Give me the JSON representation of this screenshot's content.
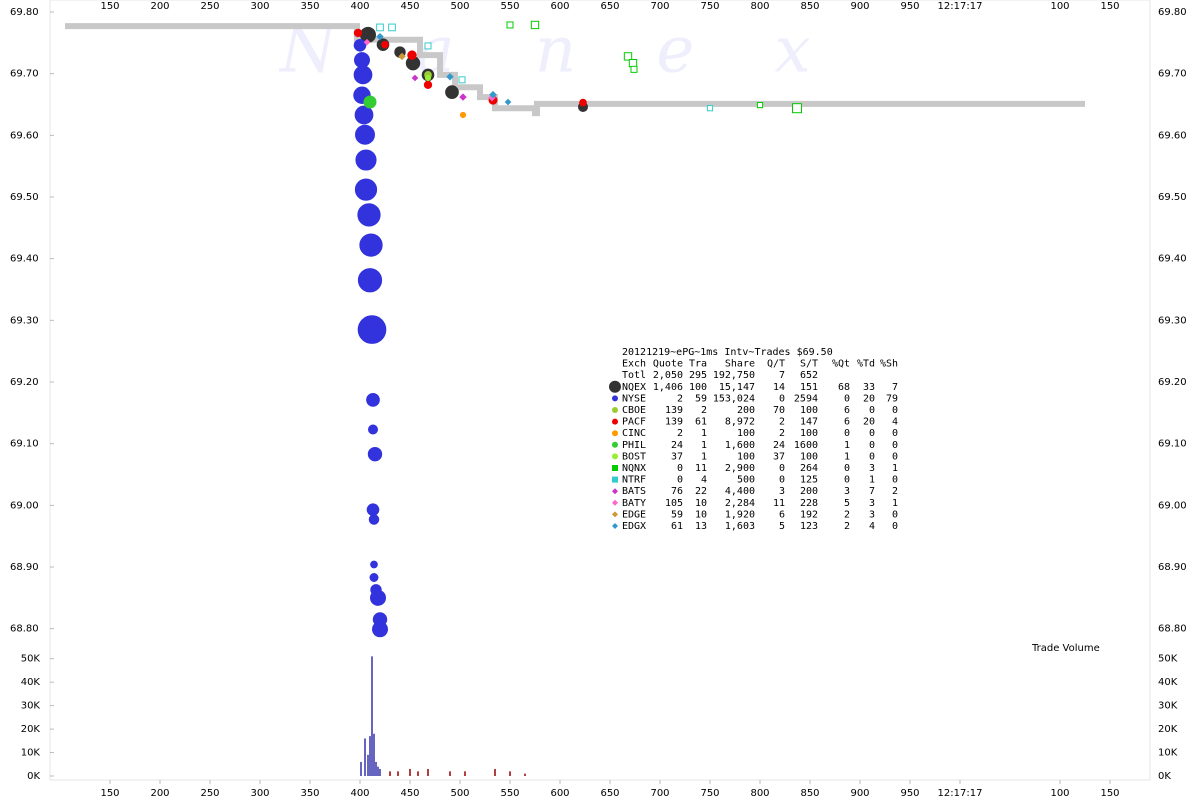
{
  "chart_data": {
    "type": "scatter",
    "watermark": "N a n e x",
    "xlim": [
      90,
      1190
    ],
    "xticks": [
      150,
      200,
      250,
      300,
      350,
      400,
      450,
      500,
      550,
      600,
      650,
      700,
      750,
      800,
      850,
      900,
      950,
      {
        "value": 1000,
        "label": "12:17:17"
      },
      {
        "value": 1100,
        "label": "100"
      },
      {
        "value": 1150,
        "label": "150"
      }
    ],
    "ylim": [
      68.78,
      69.8
    ],
    "yticks": [
      {
        "value": 69.8,
        "label": "69.80"
      },
      {
        "value": 69.7,
        "label": "69.70"
      },
      {
        "value": 69.6,
        "label": "69.60"
      },
      {
        "value": 69.5,
        "label": "69.50"
      },
      {
        "value": 69.4,
        "label": "69.40"
      },
      {
        "value": 69.3,
        "label": "69.30"
      },
      {
        "value": 69.2,
        "label": "69.20"
      },
      {
        "value": 69.1,
        "label": "69.10"
      },
      {
        "value": 69.0,
        "label": "69.00"
      },
      {
        "value": 68.9,
        "label": "68.90"
      },
      {
        "value": 68.8,
        "label": "68.80"
      }
    ],
    "nbbo": {
      "color": "#c8c8c8",
      "x": [
        105,
        397,
        397,
        460,
        460,
        480,
        480,
        495,
        495,
        520,
        520,
        535,
        535,
        575,
        575,
        577,
        577,
        1125
      ],
      "values": [
        69.777,
        69.777,
        69.755,
        69.755,
        69.73,
        69.73,
        69.698,
        69.698,
        69.678,
        69.678,
        69.662,
        69.662,
        69.644,
        69.644,
        69.636,
        69.636,
        69.651,
        69.651
      ]
    },
    "stats": {
      "title": "20121219~ePG~1ms Intv~Trades $69.50",
      "columns": [
        "Exch",
        "Quote",
        "Tra",
        "Share",
        "Q/T",
        "S/T",
        "%Qt",
        "%Td",
        "%Sh"
      ],
      "total": {
        "name": "Totl",
        "stats": [
          "2,050",
          "295",
          "192,750",
          "7",
          "652"
        ]
      }
    },
    "series": [
      {
        "name": "NQEX",
        "color": "#333333",
        "marker": "circle",
        "filled": true,
        "stats": [
          "1,406",
          "100",
          "15,147",
          "14",
          "151",
          "68",
          "33",
          "7"
        ],
        "x": [
          408,
          423,
          440,
          453,
          468,
          492,
          623
        ],
        "values": [
          69.763,
          69.747,
          69.735,
          69.717,
          69.698,
          69.67,
          69.646
        ],
        "sizes": [
          2500,
          1500,
          1200,
          2000,
          1500,
          1800,
          900
        ]
      },
      {
        "name": "NYSE",
        "color": "#3333dd",
        "marker": "circle",
        "filled": true,
        "stats": [
          "2",
          "59",
          "153,024",
          "0",
          "2594",
          "0",
          "20",
          "79"
        ],
        "x": [
          400,
          402,
          403,
          402,
          404,
          405,
          406,
          406,
          409,
          411,
          410,
          412,
          413,
          413,
          415,
          413,
          414,
          414,
          414,
          416,
          418,
          420,
          420
        ],
        "values": [
          69.746,
          69.722,
          69.698,
          69.665,
          69.633,
          69.601,
          69.56,
          69.512,
          69.471,
          69.422,
          69.365,
          69.285,
          69.171,
          69.123,
          69.083,
          68.993,
          68.977,
          68.904,
          68.883,
          68.863,
          68.85,
          68.815,
          68.799
        ],
        "sizes": [
          1500,
          2500,
          3500,
          3000,
          3500,
          4000,
          4500,
          5000,
          5500,
          5500,
          6000,
          8500,
          1800,
          900,
          2000,
          1500,
          1000,
          500,
          700,
          1200,
          2500,
          2000,
          2500
        ]
      },
      {
        "name": "CBOE",
        "color": "#99cc33",
        "marker": "circle",
        "filled": true,
        "stats": [
          "139",
          "2",
          "200",
          "70",
          "100",
          "6",
          "0",
          "0"
        ],
        "x": [
          468
        ],
        "values": [
          69.698
        ],
        "sizes": [
          500
        ]
      },
      {
        "name": "PACF",
        "color": "#ee0000",
        "marker": "circle",
        "filled": true,
        "stats": [
          "139",
          "61",
          "8,972",
          "2",
          "147",
          "6",
          "20",
          "4"
        ],
        "x": [
          398,
          425,
          452,
          468,
          533,
          623
        ],
        "values": [
          69.766,
          69.747,
          69.73,
          69.682,
          69.657,
          69.653
        ],
        "sizes": [
          600,
          500,
          800,
          600,
          700,
          500
        ]
      },
      {
        "name": "CINC",
        "color": "#ff9900",
        "marker": "circle",
        "filled": true,
        "stats": [
          "2",
          "1",
          "100",
          "2",
          "100",
          "0",
          "0",
          "0"
        ],
        "x": [
          503
        ],
        "values": [
          69.633
        ],
        "sizes": [
          300
        ]
      },
      {
        "name": "PHIL",
        "color": "#33cc33",
        "marker": "circle",
        "filled": true,
        "stats": [
          "24",
          "1",
          "1,600",
          "24",
          "1600",
          "1",
          "0",
          "0"
        ],
        "x": [
          410
        ],
        "values": [
          69.654
        ],
        "sizes": [
          1600
        ]
      },
      {
        "name": "BOST",
        "color": "#99ee33",
        "marker": "circle",
        "filled": true,
        "stats": [
          "37",
          "1",
          "100",
          "37",
          "100",
          "1",
          "0",
          "0"
        ],
        "x": [
          468
        ],
        "values": [
          69.693
        ],
        "sizes": [
          300
        ]
      },
      {
        "name": "NQNX",
        "color": "#00cc00",
        "marker": "square",
        "filled": false,
        "stats": [
          "0",
          "11",
          "2,900",
          "0",
          "264",
          "0",
          "3",
          "1"
        ],
        "x": [
          550,
          575,
          668,
          673,
          674,
          800,
          837
        ],
        "values": [
          69.779,
          69.779,
          69.728,
          69.717,
          69.707,
          69.649,
          69.644
        ],
        "sizes": [
          400,
          600,
          600,
          600,
          400,
          300,
          900
        ]
      },
      {
        "name": "NTRF",
        "color": "#33cccc",
        "marker": "square",
        "filled": false,
        "stats": [
          "0",
          "4",
          "500",
          "0",
          "125",
          "0",
          "1",
          "0"
        ],
        "x": [
          420,
          432,
          468,
          502,
          750
        ],
        "values": [
          69.775,
          69.775,
          69.745,
          69.69,
          69.644
        ],
        "sizes": [
          500,
          500,
          400,
          400,
          300
        ]
      },
      {
        "name": "BATS",
        "color": "#cc33cc",
        "marker": "diamond",
        "filled": true,
        "stats": [
          "76",
          "22",
          "4,400",
          "3",
          "200",
          "3",
          "7",
          "2"
        ],
        "x": [
          455,
          503
        ],
        "values": [
          69.693,
          69.662
        ],
        "sizes": [
          300,
          400
        ]
      },
      {
        "name": "BATY",
        "color": "#ff66cc",
        "marker": "diamond",
        "filled": true,
        "stats": [
          "105",
          "10",
          "2,284",
          "11",
          "228",
          "5",
          "3",
          "1"
        ],
        "x": [
          407,
          532
        ],
        "values": [
          69.751,
          69.661
        ],
        "sizes": [
          300,
          400
        ]
      },
      {
        "name": "EDGE",
        "color": "#cc9933",
        "marker": "diamond",
        "filled": true,
        "stats": [
          "59",
          "10",
          "1,920",
          "6",
          "192",
          "2",
          "3",
          "0"
        ],
        "x": [
          442
        ],
        "values": [
          69.728
        ],
        "sizes": [
          400
        ]
      },
      {
        "name": "EDGX",
        "color": "#3399cc",
        "marker": "diamond",
        "filled": true,
        "stats": [
          "61",
          "13",
          "1,603",
          "5",
          "123",
          "2",
          "4",
          "0"
        ],
        "x": [
          420,
          490,
          533,
          548
        ],
        "values": [
          69.76,
          69.695,
          69.666,
          69.654
        ],
        "sizes": [
          400,
          400,
          400,
          300
        ]
      }
    ],
    "volume": {
      "label": "Trade Volume",
      "ylim": [
        0,
        52000
      ],
      "yticks": [
        {
          "value": 0,
          "label": "0K"
        },
        {
          "value": 10000,
          "label": "10K"
        },
        {
          "value": 20000,
          "label": "20K"
        },
        {
          "value": 30000,
          "label": "30K"
        },
        {
          "value": 40000,
          "label": "40K"
        },
        {
          "value": 50000,
          "label": "50K"
        }
      ],
      "series": [
        {
          "color": "#3333aa",
          "x": [
            401,
            405,
            408,
            410,
            412,
            414,
            416,
            418,
            420
          ],
          "values": [
            6000,
            16000,
            9000,
            17000,
            51000,
            18000,
            6000,
            4000,
            3000
          ]
        },
        {
          "color": "#990000",
          "x": [
            430,
            438,
            450,
            458,
            468,
            490,
            505,
            535,
            550,
            565
          ],
          "values": [
            2000,
            2000,
            3000,
            2000,
            3000,
            2000,
            2000,
            3000,
            2000,
            1000
          ]
        }
      ]
    }
  }
}
